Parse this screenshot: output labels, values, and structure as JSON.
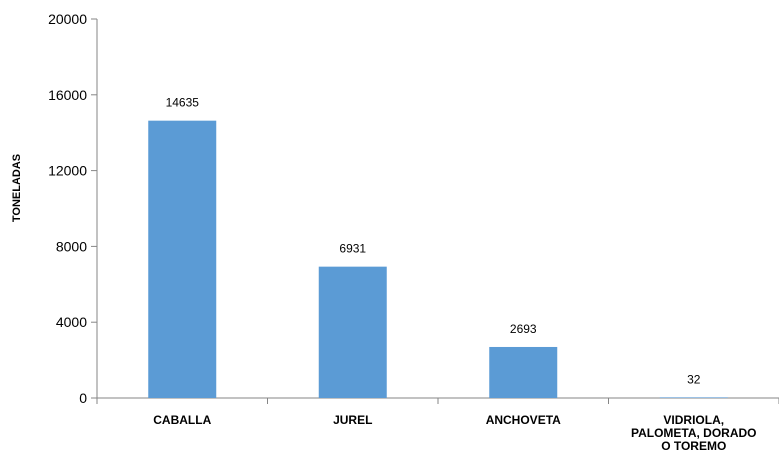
{
  "chart_data": {
    "type": "bar",
    "title": "",
    "xlabel": "",
    "ylabel": "TONELADAS",
    "categories": [
      [
        "CABALLA"
      ],
      [
        "JUREL"
      ],
      [
        "ANCHOVETA"
      ],
      [
        "VIDRIOLA,",
        "PALOMETA, DORADO",
        "O TOREMO"
      ]
    ],
    "values": [
      14635,
      6931,
      2693,
      32
    ],
    "data_labels": [
      "14635",
      "6931",
      "2693",
      "32"
    ],
    "ylim": [
      0,
      20000
    ],
    "yticks": [
      0,
      4000,
      8000,
      12000,
      16000,
      20000
    ],
    "ytick_labels": [
      "0",
      "4000",
      "8000",
      "12000",
      "16000",
      "20000"
    ],
    "bar_color": "#5b9bd5",
    "axis_color": "#868686",
    "grid": false,
    "legend": "none"
  }
}
